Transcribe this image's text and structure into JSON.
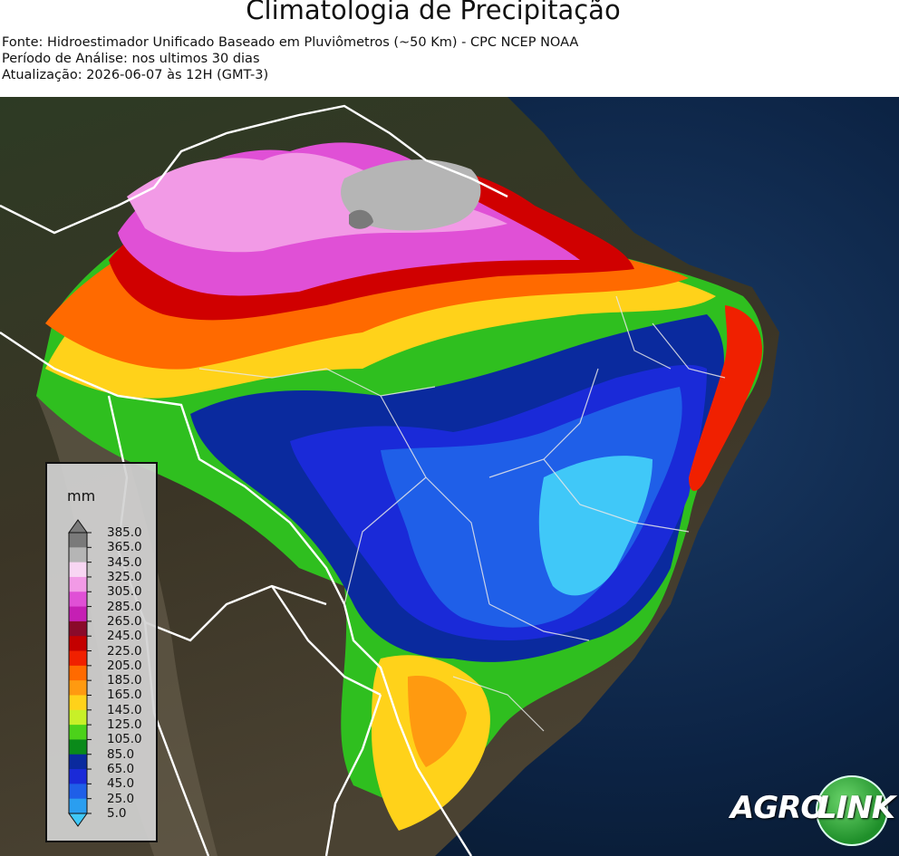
{
  "header": {
    "title": "Climatologia de Precipitação",
    "source": "Fonte: Hidroestimador Unificado Baseado em Pluviômetros (~50 Km) - CPC NCEP NOAA",
    "period": "Período de Análise: nos ultimos 30 dias",
    "updated": "Atualização: 2026-06-07 às 12H (GMT-3)"
  },
  "legend": {
    "unit": "mm",
    "ticks": [
      "385.0",
      "365.0",
      "345.0",
      "325.0",
      "305.0",
      "285.0",
      "265.0",
      "245.0",
      "225.0",
      "205.0",
      "185.0",
      "165.0",
      "145.0",
      "125.0",
      "105.0",
      "85.0",
      "65.0",
      "45.0",
      "25.0",
      "5.0"
    ],
    "colors": [
      "#7a7a7a",
      "#b5b5b5",
      "#f8d6f3",
      "#f29ae6",
      "#e050d6",
      "#c51fb4",
      "#8a0a2a",
      "#c40000",
      "#f02000",
      "#ff6a00",
      "#ff9a10",
      "#ffd21a",
      "#c8f028",
      "#4cd21a",
      "#0a8a1a",
      "#0a2a9e",
      "#1a2ad8",
      "#1f5fe8",
      "#2a9ef0",
      "#40c8f8"
    ]
  },
  "logo": {
    "brand_left": "AGRO",
    "brand_right": "LINK"
  }
}
